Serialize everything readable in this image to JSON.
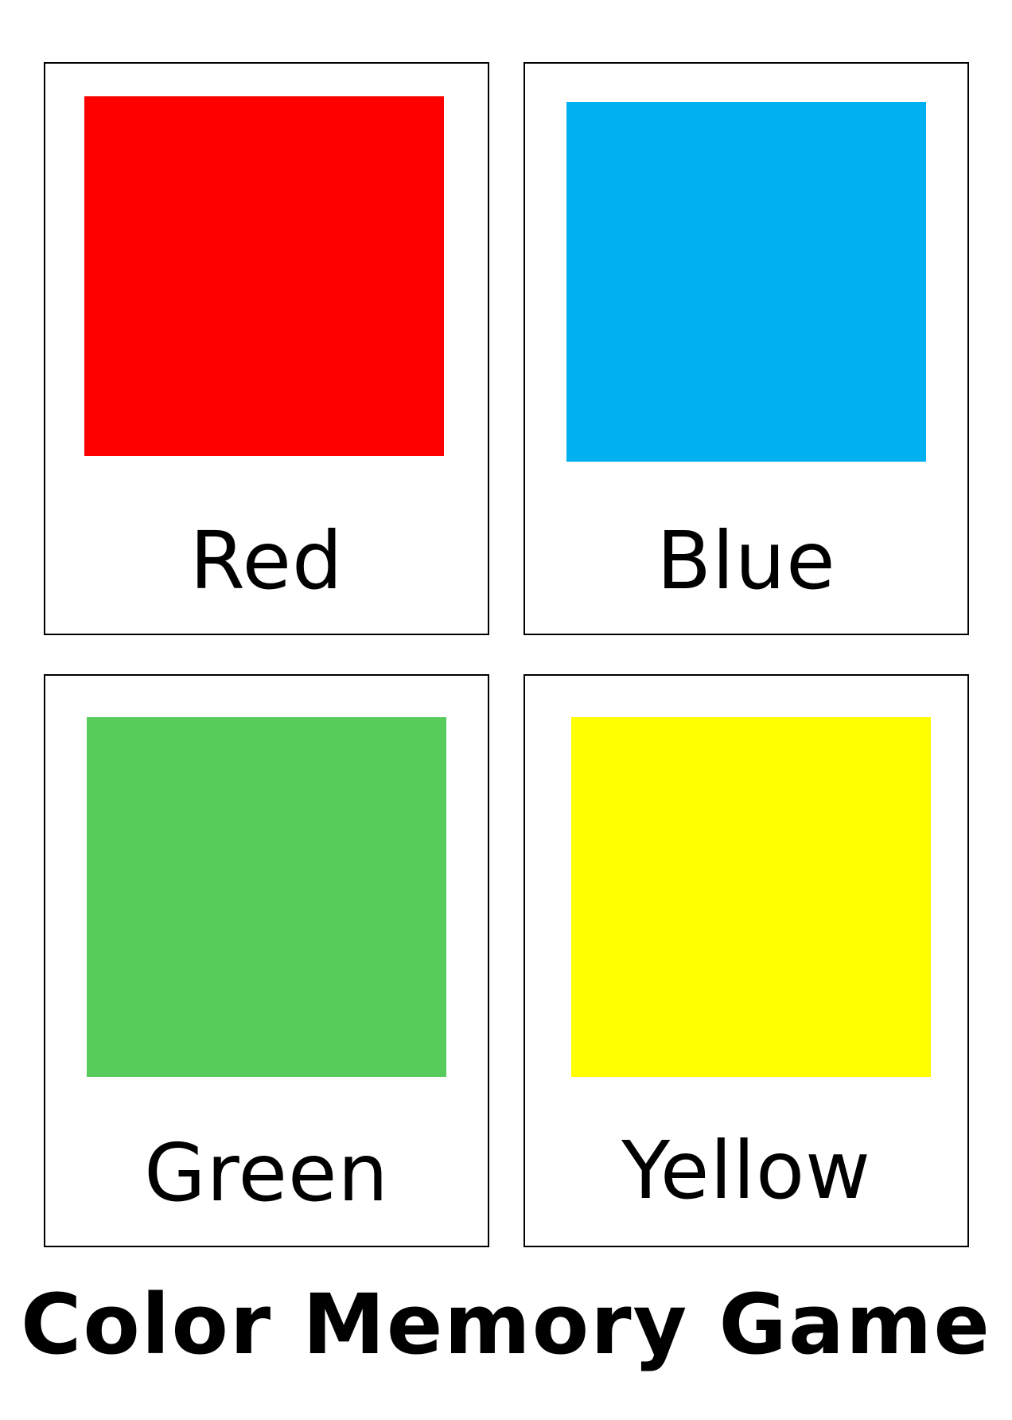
{
  "cards": [
    {
      "label": "Red",
      "color": "#ff0000"
    },
    {
      "label": "Blue",
      "color": "#00b0f0"
    },
    {
      "label": "Green",
      "color": "#58cc5a"
    },
    {
      "label": "Yellow",
      "color": "#ffff00"
    }
  ],
  "title": "Color Memory Game"
}
